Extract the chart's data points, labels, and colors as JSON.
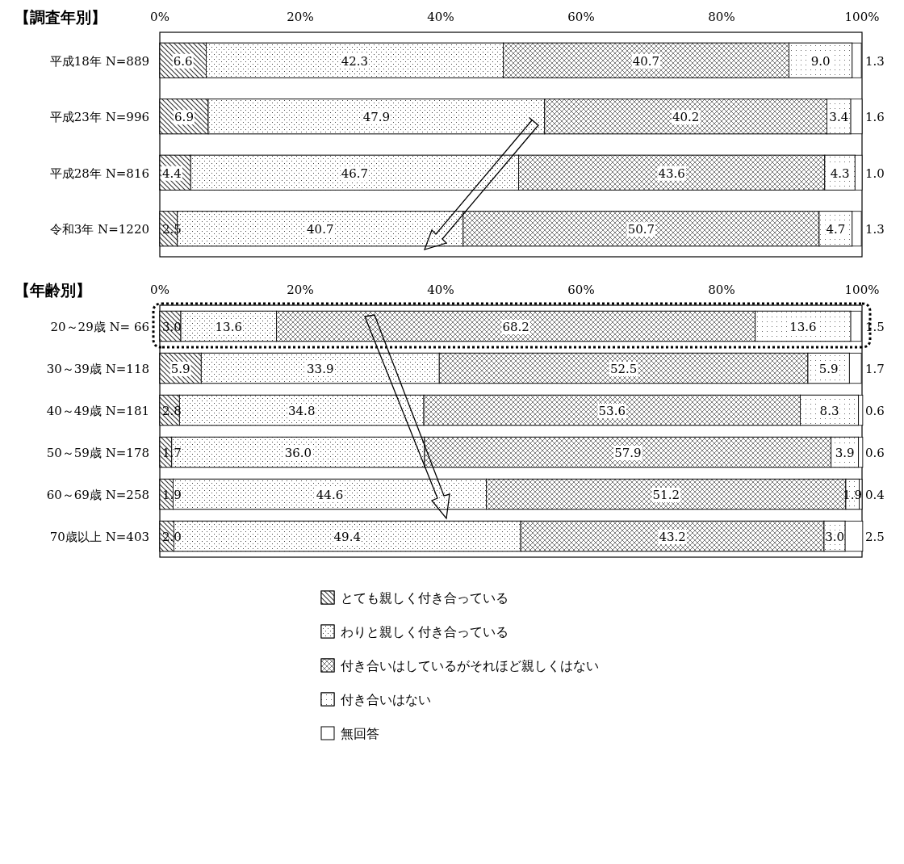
{
  "chart_data": [
    {
      "type": "bar",
      "orientation": "horizontal",
      "stacked": true,
      "title": "【調査年別】",
      "categories": [
        "平成18年 N=889",
        "平成23年 N=996",
        "平成28年 N=816",
        "令和3年 N=1220"
      ],
      "series": [
        {
          "color": "#ffffff",
          "values": [
            6.6,
            6.9,
            4.4,
            2.5
          ],
          "value_labels": [
            "6.6",
            "6.9",
            "4.4",
            "2.5"
          ]
        },
        {
          "color": "#ffffff",
          "values": [
            42.3,
            47.9,
            46.7,
            40.7
          ],
          "value_labels": [
            "42.3",
            "47.9",
            "46.7",
            "40.7"
          ]
        },
        {
          "color": "#ffffff",
          "values": [
            40.7,
            40.2,
            43.6,
            50.7
          ],
          "value_labels": [
            "40.7",
            "40.2",
            "43.6",
            "50.7"
          ]
        },
        {
          "color": "#ffffff",
          "values": [
            9.0,
            3.4,
            4.3,
            4.7
          ],
          "value_labels": [
            "9.0",
            "3.4",
            "4.3",
            "4.7"
          ]
        },
        {
          "color": "#ffffff",
          "values": [
            1.3,
            1.6,
            1.0,
            1.3
          ],
          "value_labels": [
            "1.3",
            "1.6",
            "1.0",
            "1.3"
          ]
        }
      ],
      "xlim": [
        0,
        100
      ],
      "xticks": [
        {
          "value": 0,
          "label": "0%"
        },
        {
          "value": 20,
          "label": "20%"
        },
        {
          "value": 40,
          "label": "40%"
        },
        {
          "value": 60,
          "label": "60%"
        },
        {
          "value": 80,
          "label": "80%"
        },
        {
          "value": 100,
          "label": "100%"
        }
      ]
    },
    {
      "type": "bar",
      "orientation": "horizontal",
      "stacked": true,
      "title": "【年齢別】",
      "categories": [
        "20～29歳 N= 66",
        "30～39歳 N=118",
        "40～49歳 N=181",
        "50～59歳 N=178",
        "60～69歳 N=258",
        "70歳以上 N=403"
      ],
      "series": [
        {
          "name": "とても親しく付き合っている",
          "color": "#ffffff",
          "values": [
            3.0,
            5.9,
            2.8,
            1.7,
            1.9,
            2.0
          ],
          "value_labels": [
            "3.0",
            "5.9",
            "2.8",
            "1.7",
            "1.9",
            "2.0"
          ]
        },
        {
          "name": "わりと親しく付き合っている",
          "color": "#ffffff",
          "values": [
            13.6,
            33.9,
            34.8,
            36.0,
            44.6,
            49.4
          ],
          "value_labels": [
            "13.6",
            "33.9",
            "34.8",
            "36.0",
            "44.6",
            "49.4"
          ]
        },
        {
          "name": "付き合いはしているがそれほど親しくはない",
          "color": "#ffffff",
          "values": [
            68.2,
            52.5,
            53.6,
            57.9,
            51.2,
            43.2
          ],
          "value_labels": [
            "68.2",
            "52.5",
            "53.6",
            "57.9",
            "51.2",
            "43.2"
          ]
        },
        {
          "name": "付き合いはない",
          "color": "#ffffff",
          "values": [
            13.6,
            5.9,
            8.3,
            3.9,
            1.9,
            3.0
          ],
          "value_labels": [
            "13.6",
            "5.9",
            "8.3",
            "3.9",
            "1.9",
            "3.0"
          ]
        },
        {
          "name": "無回答",
          "color": "#ffffff",
          "values": [
            1.5,
            1.7,
            0.6,
            0.6,
            0.4,
            2.5
          ],
          "value_labels": [
            "1.5",
            "1.7",
            "0.6",
            "0.6",
            "0.4",
            "2.5"
          ]
        }
      ],
      "xlim": [
        0,
        100
      ],
      "xticks": [
        {
          "value": 0,
          "label": "0%"
        },
        {
          "value": 20,
          "label": "20%"
        },
        {
          "value": 40,
          "label": "40%"
        },
        {
          "value": 60,
          "label": "60%"
        },
        {
          "value": 80,
          "label": "80%"
        },
        {
          "value": 100,
          "label": "100%"
        }
      ],
      "legend": "bottom"
    }
  ]
}
